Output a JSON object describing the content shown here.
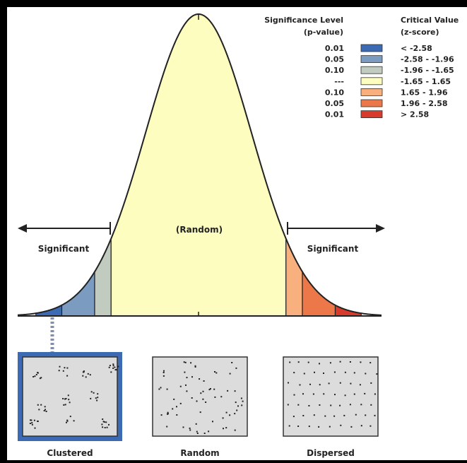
{
  "legend": {
    "sig_header_line1": "Significance Level",
    "sig_header_line2": "(p-value)",
    "crit_header_line1": "Critical Value",
    "crit_header_line2": "(z-score)",
    "rows": [
      {
        "p": "0.01",
        "z": "< -2.58",
        "color": "#3d6bb3"
      },
      {
        "p": "0.05",
        "z": "-2.58 - -1.96",
        "color": "#7b9bc0"
      },
      {
        "p": "0.10",
        "z": "-1.96 - -1.65",
        "color": "#c2cbbf"
      },
      {
        "p": "---",
        "z": "-1.65 - 1.65",
        "color": "#fdfdc0"
      },
      {
        "p": "0.10",
        "z": "1.65 - 1.96",
        "color": "#f7b07e"
      },
      {
        "p": "0.05",
        "z": "1.96 - 2.58",
        "color": "#ec7849"
      },
      {
        "p": "0.01",
        "z": "> 2.58",
        "color": "#d83a2c"
      }
    ]
  },
  "curve": {
    "center_label": "(Random)",
    "left_label": "Significant",
    "right_label": "Significant"
  },
  "patterns": [
    {
      "label": "Clustered"
    },
    {
      "label": "Random"
    },
    {
      "label": "Dispersed"
    }
  ]
}
